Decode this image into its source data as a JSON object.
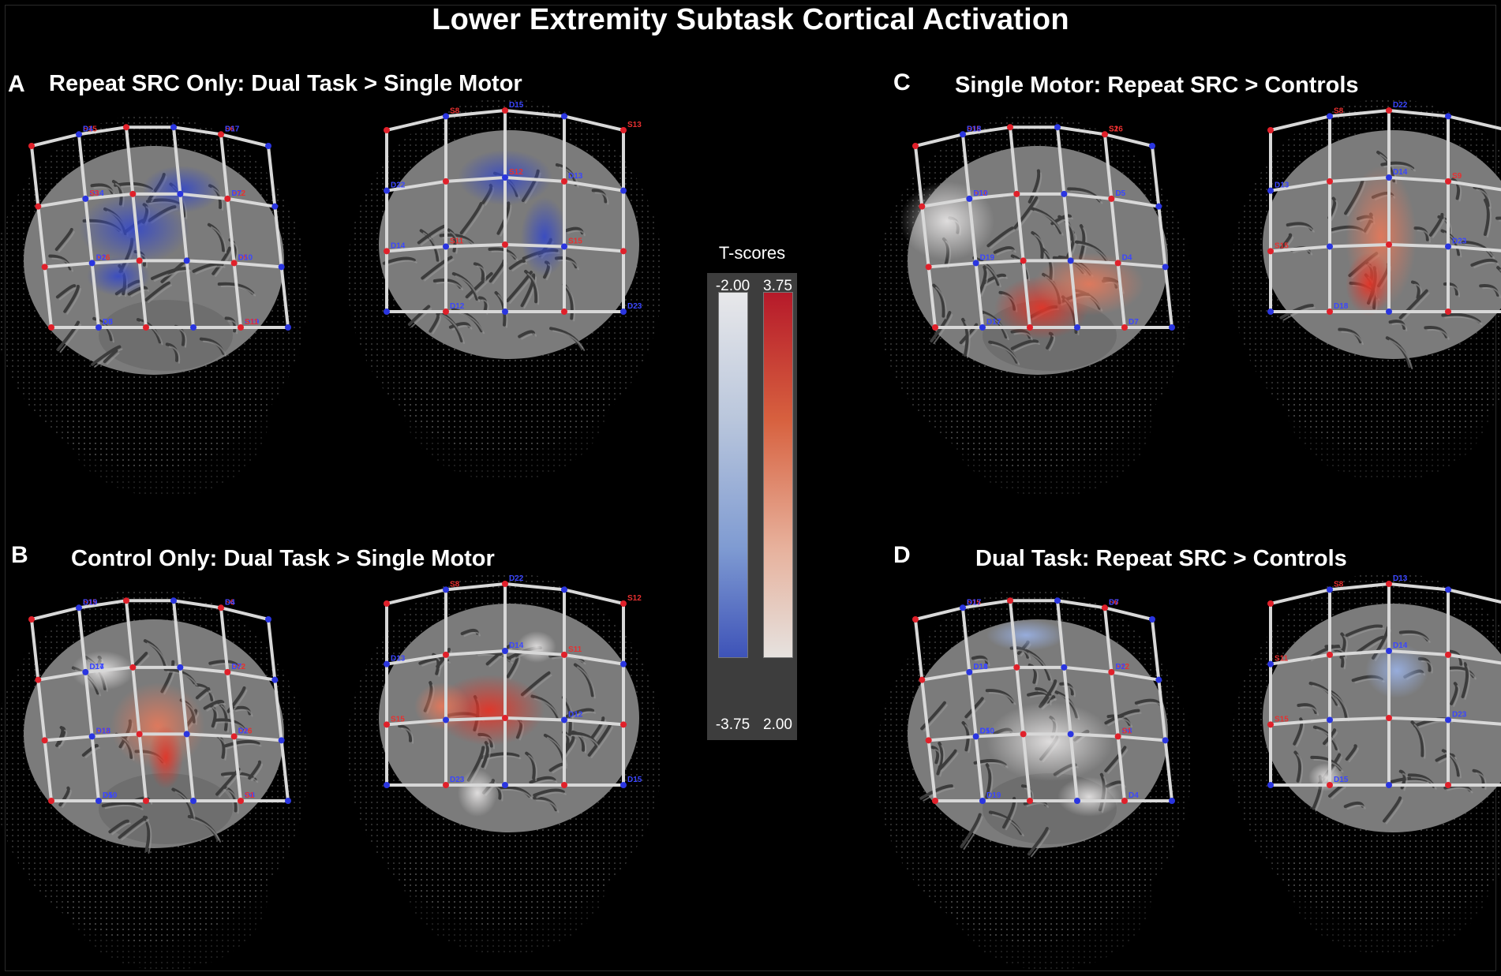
{
  "title": "Lower Extremity Subtask Cortical Activation",
  "panels": [
    {
      "letter": "A",
      "title": "Repeat SRC Only: Dual Task > Single Motor"
    },
    {
      "letter": "B",
      "title": "Control Only: Dual Task > Single Motor"
    },
    {
      "letter": "C",
      "title": "Single Motor: Repeat SRC > Controls"
    },
    {
      "letter": "D",
      "title": "Dual Task: Repeat SRC > Controls"
    }
  ],
  "colorbar": {
    "title": "T-scores",
    "negative_range": {
      "top": "-2.00",
      "bottom": "-3.75"
    },
    "positive_range": {
      "top": "3.75",
      "bottom": "2.00"
    }
  },
  "colors": {
    "negative_max": "#3e53b8",
    "negative_min": "#e8e8ea",
    "positive_max": "#b61a2a",
    "positive_min": "#e6e2df",
    "source_marker": "#e0202a",
    "detector_marker": "#2a35e0"
  },
  "optode_labels": {
    "panel_A_left": [
      "S15",
      "S6",
      "D14",
      "S12",
      "S16",
      "S5",
      "D5",
      "D19",
      "D4",
      "D17",
      "S3",
      "D7",
      "D2",
      "D10",
      "D8",
      "S11"
    ],
    "panel_A_right": [
      "S8",
      "S13",
      "S12",
      "D14",
      "S15",
      "D12",
      "D23",
      "D15",
      "D22",
      "D13",
      "S11"
    ],
    "panel_B_left": [
      "S15",
      "S6",
      "D14",
      "S12",
      "S13",
      "S16",
      "D5",
      "D8",
      "D19",
      "D4",
      "D17",
      "D7",
      "D18",
      "D2",
      "D10",
      "S1"
    ],
    "panel_B_right": [
      "S8",
      "S12",
      "D14",
      "S15",
      "D12",
      "D23",
      "D15",
      "D22",
      "D13",
      "S11"
    ],
    "panel_C_left": [
      "S15",
      "S16",
      "S12",
      "D5",
      "D19",
      "D4",
      "D17",
      "D7",
      "D18",
      "S2",
      "D10"
    ],
    "panel_C_right": [
      "S8",
      "S12",
      "D14",
      "S15",
      "D23",
      "D18",
      "D12",
      "D22",
      "D13",
      "S9"
    ],
    "panel_D_left": [
      "S15",
      "S6",
      "D14",
      "S12",
      "D5",
      "D8",
      "D19",
      "D4",
      "D17",
      "D7",
      "D18",
      "D2",
      "D10",
      "S1"
    ],
    "panel_D_right": [
      "S8",
      "S12",
      "D14",
      "S15",
      "D23",
      "D15",
      "D22",
      "D13",
      "S11"
    ]
  }
}
